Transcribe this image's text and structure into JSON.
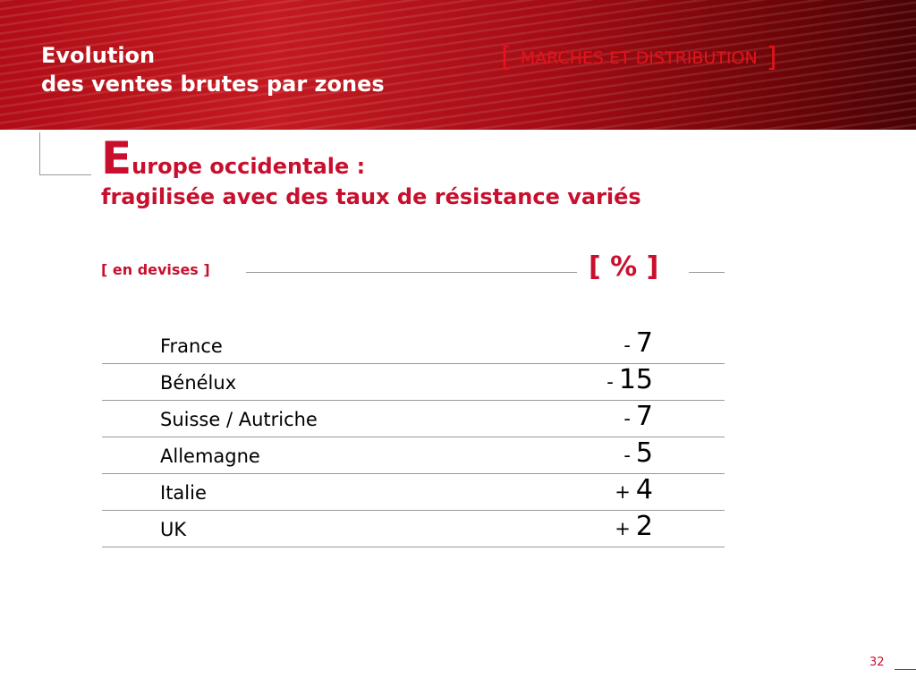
{
  "header": {
    "title_line1": "Evolution",
    "title_line2": "des ventes brutes par zones",
    "section_open": "[",
    "section_label": "MARCHES ET DISTRIBUTION",
    "section_close": "]"
  },
  "subtitle": {
    "initial": "E",
    "line1_rest": "urope occidentale :",
    "line2": "fragilisée avec des taux de résistance variés"
  },
  "units": {
    "left": "[ en devises ]",
    "right": "[ % ]"
  },
  "rows": [
    {
      "country": "France",
      "sign": "-",
      "value": "7"
    },
    {
      "country": "Bénélux",
      "sign": "-",
      "value": "15"
    },
    {
      "country": "Suisse / Autriche",
      "sign": "-",
      "value": "7"
    },
    {
      "country": "Allemagne",
      "sign": "-",
      "value": "5"
    },
    {
      "country": "Italie",
      "sign": "+",
      "value": "4"
    },
    {
      "country": "UK",
      "sign": "+",
      "value": "2"
    }
  ],
  "footer": {
    "page_number": "32"
  },
  "colors": {
    "accent": "#c8102e",
    "banner": "#b10d16"
  }
}
